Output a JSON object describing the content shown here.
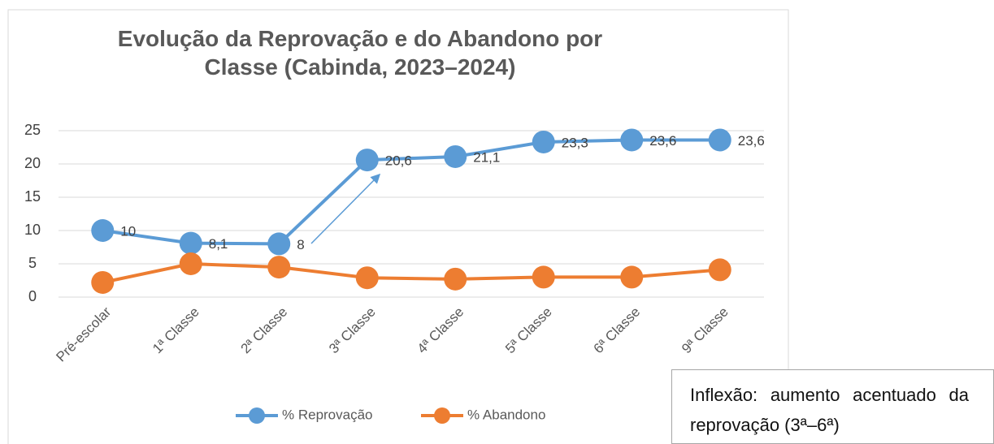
{
  "chart_data": {
    "type": "line",
    "title": "Evolução da Reprovação e do Abandono por Classe (Cabinda, 2023–2024)",
    "categories": [
      "Pré-escolar",
      "1ª Classe",
      "2ª Classe",
      "3ª Classe",
      "4ª Classe",
      "5ª Classe",
      "6ª Classe",
      "9ª Classe"
    ],
    "series": [
      {
        "name": "% Reprovação",
        "color": "#5b9bd5",
        "values": [
          10,
          8.1,
          8,
          20.6,
          21.1,
          23.3,
          23.6,
          23.6
        ],
        "value_labels": [
          "10",
          "8,1",
          "8",
          "20,6",
          "21,1",
          "23,3",
          "23,6",
          "23,6"
        ]
      },
      {
        "name": "% Abandono",
        "color": "#ed7d31",
        "values": [
          2.2,
          5,
          4.5,
          2.9,
          2.7,
          3,
          3,
          4.1
        ]
      }
    ],
    "ylim": [
      0,
      25
    ],
    "yticks": [
      0,
      5,
      10,
      15,
      20,
      25
    ],
    "grid": true,
    "legend": "bottom",
    "annotation": "Inflexão: aumento acentuado da reprovação (3ª–6ª)"
  }
}
